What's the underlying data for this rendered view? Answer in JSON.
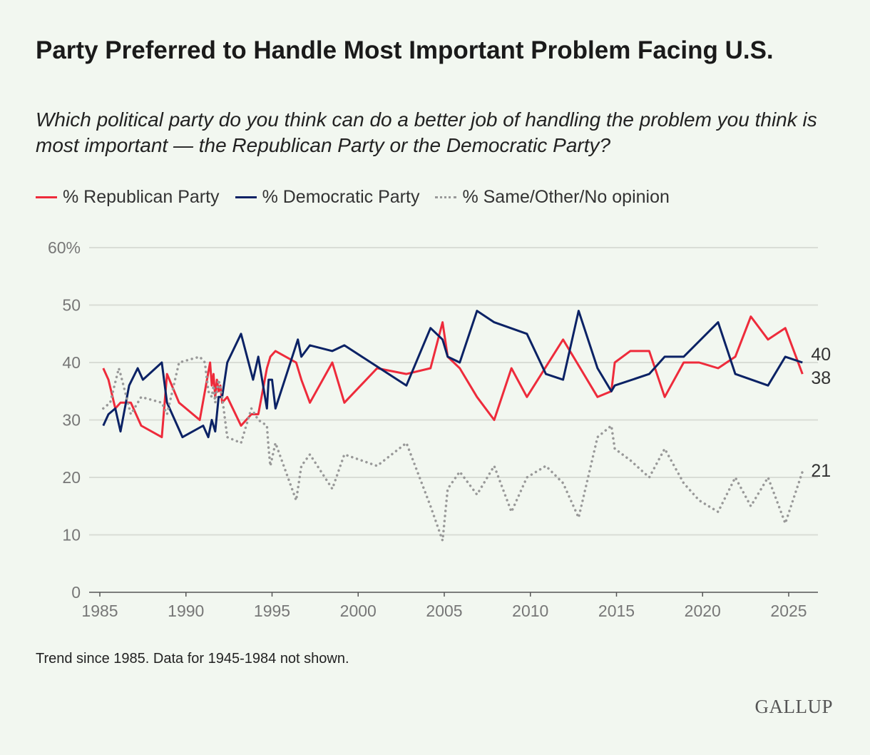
{
  "title": "Party Preferred to Handle Most Important Problem Facing U.S.",
  "subtitle": "Which political party do you think can do a better job of handling the problem you think is most important — the Republican Party or the Democratic Party?",
  "footnote": "Trend since 1985. Data for 1945-1984 not shown.",
  "logo": "GALLUP",
  "chart_data": {
    "type": "line",
    "xlim": [
      1985,
      2026
    ],
    "ylim": [
      0,
      60
    ],
    "yticks": [
      0,
      10,
      20,
      30,
      40,
      50,
      60
    ],
    "ytick_labels": [
      "0",
      "10",
      "20",
      "30",
      "40",
      "50",
      "60%"
    ],
    "xticks": [
      1985,
      1990,
      1995,
      2000,
      2005,
      2010,
      2015,
      2020,
      2025
    ],
    "xtick_labels": [
      "1985",
      "1990",
      "1995",
      "2000",
      "2005",
      "2010",
      "2015",
      "2020",
      "2025"
    ],
    "grid": "horizontal",
    "legend": "top-left",
    "series": [
      {
        "name": "% Republican Party",
        "color": "#ee2b3b",
        "style": "solid",
        "end_label": "38",
        "points": [
          [
            1985.2,
            39
          ],
          [
            1985.5,
            37
          ],
          [
            1985.9,
            32
          ],
          [
            1986.2,
            33
          ],
          [
            1986.8,
            33
          ],
          [
            1987.4,
            29
          ],
          [
            1988.6,
            27
          ],
          [
            1988.9,
            38
          ],
          [
            1989.6,
            33
          ],
          [
            1990.8,
            30
          ],
          [
            1991.4,
            40
          ],
          [
            1991.5,
            36
          ],
          [
            1991.6,
            38
          ],
          [
            1991.7,
            34
          ],
          [
            1991.8,
            37
          ],
          [
            1991.9,
            35
          ],
          [
            1992.0,
            36
          ],
          [
            1992.1,
            33
          ],
          [
            1992.4,
            34
          ],
          [
            1993.2,
            29
          ],
          [
            1993.8,
            31
          ],
          [
            1994.2,
            31
          ],
          [
            1994.7,
            39
          ],
          [
            1994.9,
            41
          ],
          [
            1995.2,
            42
          ],
          [
            1996.4,
            40
          ],
          [
            1996.7,
            37
          ],
          [
            1997.2,
            33
          ],
          [
            1998.5,
            40
          ],
          [
            1999.2,
            33
          ],
          [
            2001.1,
            39
          ],
          [
            2002.8,
            38
          ],
          [
            2004.2,
            39
          ],
          [
            2004.9,
            47
          ],
          [
            2005.2,
            41
          ],
          [
            2005.9,
            39
          ],
          [
            2006.9,
            34
          ],
          [
            2007.9,
            30
          ],
          [
            2008.9,
            39
          ],
          [
            2009.8,
            34
          ],
          [
            2011.9,
            44
          ],
          [
            2013.9,
            34
          ],
          [
            2014.7,
            35
          ],
          [
            2014.9,
            40
          ],
          [
            2015.8,
            42
          ],
          [
            2016.9,
            42
          ],
          [
            2017.8,
            34
          ],
          [
            2018.9,
            40
          ],
          [
            2019.8,
            40
          ],
          [
            2020.9,
            39
          ],
          [
            2021.9,
            41
          ],
          [
            2022.8,
            48
          ],
          [
            2023.8,
            44
          ],
          [
            2024.8,
            46
          ],
          [
            2025.8,
            38
          ]
        ]
      },
      {
        "name": "% Democratic Party",
        "color": "#0b2265",
        "style": "solid",
        "end_label": "40",
        "points": [
          [
            1985.2,
            29
          ],
          [
            1985.5,
            31
          ],
          [
            1985.9,
            32
          ],
          [
            1986.2,
            28
          ],
          [
            1986.7,
            36
          ],
          [
            1987.2,
            39
          ],
          [
            1987.5,
            37
          ],
          [
            1988.6,
            40
          ],
          [
            1988.9,
            33
          ],
          [
            1989.8,
            27
          ],
          [
            1991.0,
            29
          ],
          [
            1991.3,
            27
          ],
          [
            1991.5,
            30
          ],
          [
            1991.7,
            28
          ],
          [
            1991.9,
            34
          ],
          [
            1992.1,
            34
          ],
          [
            1992.4,
            40
          ],
          [
            1993.2,
            45
          ],
          [
            1993.9,
            37
          ],
          [
            1994.2,
            41
          ],
          [
            1994.7,
            32
          ],
          [
            1994.8,
            37
          ],
          [
            1995.0,
            37
          ],
          [
            1995.2,
            32
          ],
          [
            1996.5,
            44
          ],
          [
            1996.7,
            41
          ],
          [
            1997.2,
            43
          ],
          [
            1998.5,
            42
          ],
          [
            1999.2,
            43
          ],
          [
            2002.8,
            36
          ],
          [
            2004.2,
            46
          ],
          [
            2004.9,
            44
          ],
          [
            2005.2,
            41
          ],
          [
            2005.9,
            40
          ],
          [
            2006.9,
            49
          ],
          [
            2007.9,
            47
          ],
          [
            2009.8,
            45
          ],
          [
            2010.9,
            38
          ],
          [
            2011.9,
            37
          ],
          [
            2012.8,
            49
          ],
          [
            2013.9,
            39
          ],
          [
            2014.7,
            35
          ],
          [
            2014.9,
            36
          ],
          [
            2016.9,
            38
          ],
          [
            2017.8,
            41
          ],
          [
            2018.9,
            41
          ],
          [
            2020.9,
            47
          ],
          [
            2021.9,
            38
          ],
          [
            2023.8,
            36
          ],
          [
            2024.8,
            41
          ],
          [
            2025.8,
            40
          ]
        ]
      },
      {
        "name": "% Same/Other/No opinion",
        "color": "#999999",
        "style": "dotted",
        "end_label": "21",
        "points": [
          [
            1985.2,
            32
          ],
          [
            1985.6,
            33
          ],
          [
            1986.1,
            39
          ],
          [
            1986.2,
            38
          ],
          [
            1986.8,
            31
          ],
          [
            1987.4,
            34
          ],
          [
            1988.6,
            33
          ],
          [
            1988.9,
            31
          ],
          [
            1989.6,
            40
          ],
          [
            1990.8,
            41
          ],
          [
            1991.1,
            40
          ],
          [
            1991.3,
            35
          ],
          [
            1991.5,
            34
          ],
          [
            1991.6,
            36
          ],
          [
            1991.7,
            33
          ],
          [
            1991.9,
            37
          ],
          [
            1992.1,
            34
          ],
          [
            1992.4,
            27
          ],
          [
            1993.2,
            26
          ],
          [
            1993.8,
            32
          ],
          [
            1994.2,
            30
          ],
          [
            1994.7,
            29
          ],
          [
            1994.8,
            25
          ],
          [
            1994.9,
            22
          ],
          [
            1995.2,
            26
          ],
          [
            1996.4,
            16
          ],
          [
            1996.7,
            22
          ],
          [
            1997.2,
            24
          ],
          [
            1998.5,
            18
          ],
          [
            1999.2,
            24
          ],
          [
            2001.1,
            22
          ],
          [
            2002.8,
            26
          ],
          [
            2004.2,
            15
          ],
          [
            2004.9,
            9
          ],
          [
            2005.2,
            18
          ],
          [
            2005.9,
            21
          ],
          [
            2006.9,
            17
          ],
          [
            2007.9,
            22
          ],
          [
            2008.9,
            14
          ],
          [
            2009.8,
            20
          ],
          [
            2010.9,
            22
          ],
          [
            2011.9,
            19
          ],
          [
            2012.8,
            13
          ],
          [
            2013.9,
            27
          ],
          [
            2014.7,
            29
          ],
          [
            2014.9,
            25
          ],
          [
            2015.8,
            23
          ],
          [
            2016.9,
            20
          ],
          [
            2017.8,
            25
          ],
          [
            2018.9,
            19
          ],
          [
            2019.8,
            16
          ],
          [
            2020.9,
            14
          ],
          [
            2021.9,
            20
          ],
          [
            2022.8,
            15
          ],
          [
            2023.8,
            20
          ],
          [
            2024.8,
            12
          ],
          [
            2025.8,
            21
          ]
        ]
      }
    ]
  }
}
